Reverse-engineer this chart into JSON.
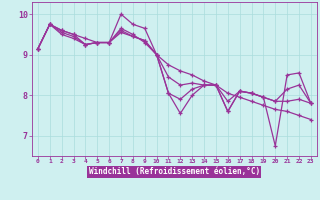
{
  "background_color": "#cff0f0",
  "line_color": "#993399",
  "grid_color": "#aadddd",
  "xlabel": "Windchill (Refroidissement éolien,°C)",
  "xlabel_bg": "#993399",
  "ylim": [
    6.5,
    10.3
  ],
  "xlim": [
    -0.5,
    23.5
  ],
  "yticks": [
    7,
    8,
    9,
    10
  ],
  "xticks": [
    0,
    1,
    2,
    3,
    4,
    5,
    6,
    7,
    8,
    9,
    10,
    11,
    12,
    13,
    14,
    15,
    16,
    17,
    18,
    19,
    20,
    21,
    22,
    23
  ],
  "series": [
    [
      9.15,
      9.75,
      9.6,
      9.5,
      9.4,
      9.3,
      9.3,
      9.55,
      9.45,
      9.35,
      9.0,
      8.75,
      8.6,
      8.5,
      8.35,
      8.25,
      8.05,
      7.95,
      7.85,
      7.75,
      7.65,
      7.6,
      7.5,
      7.4
    ],
    [
      9.15,
      9.75,
      9.6,
      9.5,
      9.25,
      9.3,
      9.3,
      10.0,
      9.75,
      9.65,
      9.0,
      8.05,
      7.55,
      8.0,
      8.25,
      8.25,
      7.6,
      8.1,
      8.05,
      7.95,
      6.75,
      8.5,
      8.55,
      7.8
    ],
    [
      9.15,
      9.75,
      9.5,
      9.4,
      9.25,
      9.3,
      9.3,
      9.65,
      9.5,
      9.3,
      9.0,
      8.05,
      7.9,
      8.15,
      8.25,
      8.25,
      7.6,
      8.1,
      8.05,
      7.95,
      7.85,
      7.85,
      7.9,
      7.8
    ],
    [
      9.15,
      9.75,
      9.55,
      9.45,
      9.25,
      9.3,
      9.3,
      9.6,
      9.45,
      9.35,
      9.0,
      8.45,
      8.25,
      8.3,
      8.25,
      8.25,
      7.85,
      8.1,
      8.05,
      7.95,
      7.85,
      8.15,
      8.25,
      7.8
    ]
  ]
}
